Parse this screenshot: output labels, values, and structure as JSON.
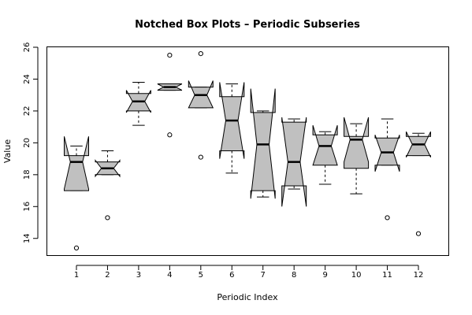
{
  "chart_data": {
    "type": "boxplot",
    "notched": true,
    "title": "Notched Box Plots – Periodic Subseries",
    "xlabel": "Periodic Index",
    "ylabel": "Value",
    "ylim": [
      12.9,
      26.0
    ],
    "yticks": [
      14,
      16,
      18,
      20,
      22,
      24,
      26
    ],
    "categories": [
      "1",
      "2",
      "3",
      "4",
      "5",
      "6",
      "7",
      "8",
      "9",
      "10",
      "11",
      "12"
    ],
    "box_fill": "#c0c0c0",
    "boxes": [
      {
        "lw": 17.0,
        "q1": 17.0,
        "med": 18.8,
        "q3": 19.2,
        "uw": 19.8,
        "n_lo": 17.1,
        "n_hi": 20.4,
        "outliers": [
          13.4
        ]
      },
      {
        "lw": 18.0,
        "q1": 18.0,
        "med": 18.4,
        "q3": 18.8,
        "uw": 19.5,
        "n_lo": 17.9,
        "n_hi": 18.9,
        "outliers": [
          15.3
        ]
      },
      {
        "lw": 21.1,
        "q1": 22.0,
        "med": 22.6,
        "q3": 23.1,
        "uw": 23.8,
        "n_lo": 21.9,
        "n_hi": 23.3,
        "outliers": []
      },
      {
        "lw": 23.3,
        "q1": 23.3,
        "med": 23.5,
        "q3": 23.7,
        "uw": 23.7,
        "n_lo": 23.3,
        "n_hi": 23.7,
        "outliers": [
          25.5,
          20.5
        ]
      },
      {
        "lw": 22.2,
        "q1": 22.2,
        "med": 23.0,
        "q3": 23.5,
        "uw": 23.5,
        "n_lo": 22.2,
        "n_hi": 23.9,
        "outliers": [
          25.6,
          19.1
        ]
      },
      {
        "lw": 18.1,
        "q1": 19.5,
        "med": 21.4,
        "q3": 22.9,
        "uw": 23.7,
        "n_lo": 19.0,
        "n_hi": 23.8,
        "outliers": []
      },
      {
        "lw": 16.6,
        "q1": 17.0,
        "med": 19.9,
        "q3": 21.9,
        "uw": 22.0,
        "n_lo": 16.5,
        "n_hi": 23.4,
        "outliers": []
      },
      {
        "lw": 17.1,
        "q1": 17.3,
        "med": 18.8,
        "q3": 21.3,
        "uw": 21.5,
        "n_lo": 16.0,
        "n_hi": 21.6,
        "outliers": []
      },
      {
        "lw": 17.4,
        "q1": 18.6,
        "med": 19.8,
        "q3": 20.5,
        "uw": 20.7,
        "n_lo": 18.6,
        "n_hi": 21.1,
        "outliers": []
      },
      {
        "lw": 16.8,
        "q1": 18.4,
        "med": 20.2,
        "q3": 20.4,
        "uw": 21.2,
        "n_lo": 18.8,
        "n_hi": 21.6,
        "outliers": []
      },
      {
        "lw": 18.6,
        "q1": 18.6,
        "med": 19.4,
        "q3": 20.3,
        "uw": 21.5,
        "n_lo": 18.2,
        "n_hi": 20.5,
        "outliers": [
          15.3
        ]
      },
      {
        "lw": 19.2,
        "q1": 19.2,
        "med": 19.9,
        "q3": 20.4,
        "uw": 20.6,
        "n_lo": 19.1,
        "n_hi": 20.7,
        "outliers": [
          14.3
        ]
      }
    ]
  }
}
